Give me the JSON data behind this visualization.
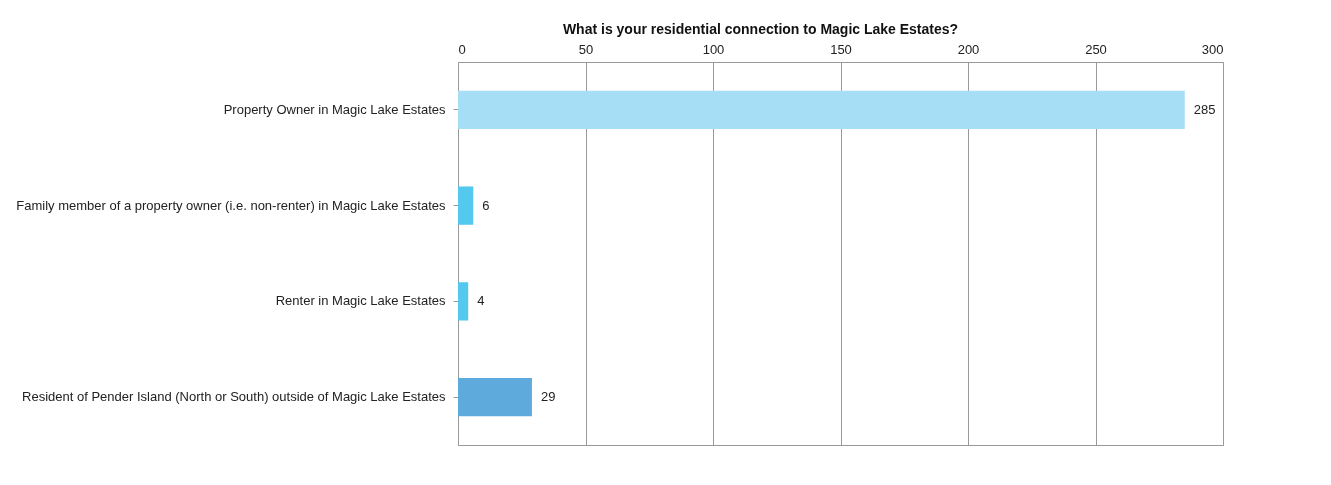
{
  "chart_data": {
    "type": "bar",
    "orientation": "horizontal",
    "title": "What is your residential connection to Magic Lake Estates?",
    "categories": [
      "Property Owner in Magic Lake Estates",
      "Family member of a property owner (i.e. non-renter) in Magic Lake Estates",
      "Renter in Magic Lake Estates",
      "Resident of Pender Island (North or South) outside of Magic Lake Estates"
    ],
    "values": [
      285,
      6,
      4,
      29
    ],
    "colors": [
      "#a6def6",
      "#55c8f0",
      "#55c8f0",
      "#5eaadd"
    ],
    "xlim": [
      0,
      300
    ],
    "xticks": [
      0,
      50,
      100,
      150,
      200,
      250,
      300
    ],
    "grid": true,
    "data_labels": true,
    "legend": false
  }
}
